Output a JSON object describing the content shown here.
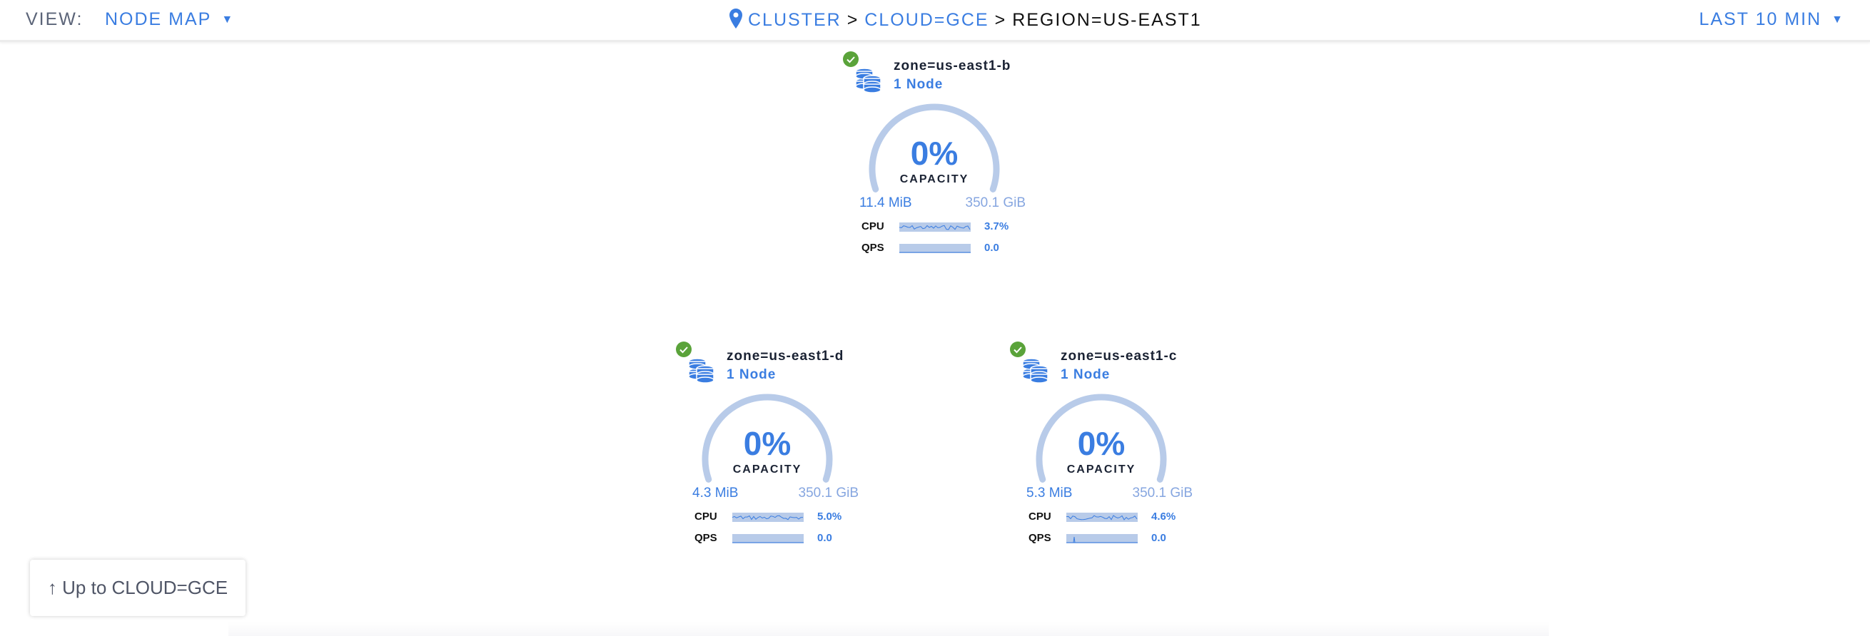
{
  "header": {
    "view_label": "VIEW:",
    "view_value": "NODE MAP",
    "breadcrumb": {
      "items": [
        "CLUSTER",
        "CLOUD=GCE"
      ],
      "separator": ">",
      "current": "REGION=US-EAST1"
    },
    "time_range": "LAST 10 MIN"
  },
  "colors": {
    "accent": "#3a7de1",
    "gauge_track": "#b8cbe9",
    "healthy": "#5aa33a"
  },
  "zones": [
    {
      "name": "zone=us-east1-b",
      "nodes": "1 Node",
      "capacity_pct": "0%",
      "capacity_label": "CAPACITY",
      "used": "11.4 MiB",
      "total": "350.1 GiB",
      "status": "healthy",
      "cpu_label": "CPU",
      "cpu_value": "3.7%",
      "qps_label": "QPS",
      "qps_value": "0.0"
    },
    {
      "name": "zone=us-east1-d",
      "nodes": "1 Node",
      "capacity_pct": "0%",
      "capacity_label": "CAPACITY",
      "used": "4.3 MiB",
      "total": "350.1 GiB",
      "status": "healthy",
      "cpu_label": "CPU",
      "cpu_value": "5.0%",
      "qps_label": "QPS",
      "qps_value": "0.0"
    },
    {
      "name": "zone=us-east1-c",
      "nodes": "1 Node",
      "capacity_pct": "0%",
      "capacity_label": "CAPACITY",
      "used": "5.3 MiB",
      "total": "350.1 GiB",
      "status": "healthy",
      "cpu_label": "CPU",
      "cpu_value": "4.6%",
      "qps_label": "QPS",
      "qps_value": "0.0"
    }
  ],
  "up_button": {
    "arrow": "↑",
    "label": "Up to CLOUD=GCE"
  }
}
